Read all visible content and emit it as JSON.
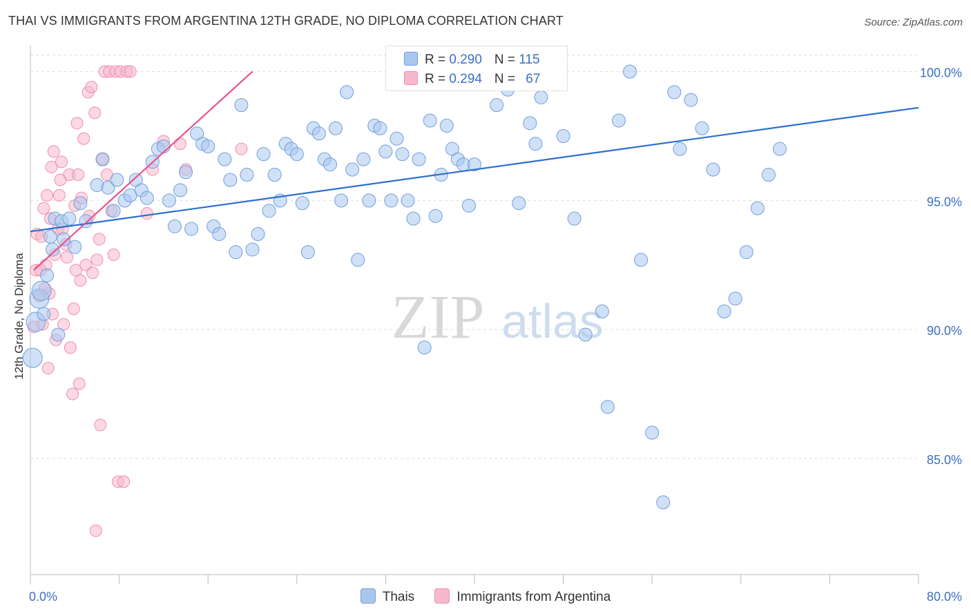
{
  "title": "THAI VS IMMIGRANTS FROM ARGENTINA 12TH GRADE, NO DIPLOMA CORRELATION CHART",
  "source": "Source: ZipAtlas.com",
  "watermark": {
    "zip": "ZIP",
    "atlas": "atlas"
  },
  "legend_top": {
    "rows": [
      {
        "r_label": "R = ",
        "r_value": "0.290",
        "n_label": "N = ",
        "n_value": "115",
        "color": "#a9c6ee"
      },
      {
        "r_label": "R = ",
        "r_value": "0.294",
        "n_label": "N = ",
        "n_value": "67",
        "color": "#f7b8cc"
      }
    ]
  },
  "chart_data": {
    "type": "scatter",
    "title": "THAI VS IMMIGRANTS FROM ARGENTINA 12TH GRADE, NO DIPLOMA CORRELATION CHART",
    "xlabel": "",
    "ylabel": "12th Grade, No Diploma",
    "xlim": [
      0,
      80
    ],
    "ylim": [
      80.5,
      100.9
    ],
    "x_tick_labels": [
      {
        "value": 0,
        "label": "0.0%"
      },
      {
        "value": 80,
        "label": "80.0%"
      }
    ],
    "y_tick_labels": [
      {
        "value": 85,
        "label": "85.0%"
      },
      {
        "value": 90,
        "label": "90.0%"
      },
      {
        "value": 95,
        "label": "95.0%"
      },
      {
        "value": 100,
        "label": "100.0%"
      }
    ],
    "grid": true,
    "legend_position": "bottom",
    "series": [
      {
        "name": "Thais",
        "color": "#a9c6ee",
        "stroke": "#6f9fdc",
        "trend": {
          "x": [
            0,
            80
          ],
          "y": [
            93.8,
            98.6
          ],
          "color": "#2a6fcf"
        },
        "points": [
          [
            0.2,
            88.9
          ],
          [
            0.5,
            90.3
          ],
          [
            0.8,
            91.2
          ],
          [
            1.0,
            91.5
          ],
          [
            1.2,
            90.6
          ],
          [
            1.5,
            92.1
          ],
          [
            1.8,
            93.6
          ],
          [
            2.0,
            93.1
          ],
          [
            2.2,
            94.3
          ],
          [
            2.5,
            89.8
          ],
          [
            2.8,
            94.2
          ],
          [
            3.0,
            93.5
          ],
          [
            3.5,
            94.3
          ],
          [
            4.0,
            93.2
          ],
          [
            4.5,
            94.9
          ],
          [
            5.0,
            94.2
          ],
          [
            6.0,
            95.6
          ],
          [
            6.5,
            96.6
          ],
          [
            7.0,
            95.5
          ],
          [
            7.5,
            94.6
          ],
          [
            7.8,
            95.8
          ],
          [
            8.5,
            95.0
          ],
          [
            9.0,
            95.2
          ],
          [
            9.5,
            95.8
          ],
          [
            10.0,
            95.4
          ],
          [
            10.5,
            95.1
          ],
          [
            11.0,
            96.5
          ],
          [
            11.5,
            97.0
          ],
          [
            12.0,
            97.1
          ],
          [
            12.5,
            95.0
          ],
          [
            13.0,
            94.0
          ],
          [
            13.5,
            95.4
          ],
          [
            14.0,
            96.1
          ],
          [
            14.5,
            93.9
          ],
          [
            15.0,
            97.6
          ],
          [
            15.5,
            97.2
          ],
          [
            16.0,
            97.1
          ],
          [
            16.5,
            94.0
          ],
          [
            17.0,
            93.7
          ],
          [
            17.5,
            96.6
          ],
          [
            18.0,
            95.8
          ],
          [
            18.5,
            93.0
          ],
          [
            19.0,
            98.7
          ],
          [
            19.5,
            96.0
          ],
          [
            20.0,
            93.1
          ],
          [
            20.5,
            93.7
          ],
          [
            21.0,
            96.8
          ],
          [
            21.5,
            94.6
          ],
          [
            22.0,
            96.0
          ],
          [
            22.5,
            95.0
          ],
          [
            23.0,
            97.2
          ],
          [
            23.5,
            97.0
          ],
          [
            24.0,
            96.8
          ],
          [
            24.5,
            94.9
          ],
          [
            25.0,
            93.0
          ],
          [
            25.5,
            97.8
          ],
          [
            26.0,
            97.6
          ],
          [
            26.5,
            96.6
          ],
          [
            27.0,
            96.4
          ],
          [
            27.5,
            97.8
          ],
          [
            28.0,
            95.0
          ],
          [
            28.5,
            99.2
          ],
          [
            29.0,
            96.2
          ],
          [
            29.5,
            92.7
          ],
          [
            30.0,
            96.6
          ],
          [
            30.5,
            95.0
          ],
          [
            31.0,
            97.9
          ],
          [
            31.5,
            97.8
          ],
          [
            32.0,
            96.9
          ],
          [
            32.5,
            95.0
          ],
          [
            33.0,
            97.4
          ],
          [
            33.5,
            96.8
          ],
          [
            34.0,
            95.0
          ],
          [
            34.5,
            94.3
          ],
          [
            35.0,
            96.6
          ],
          [
            35.5,
            89.3
          ],
          [
            36.0,
            98.1
          ],
          [
            36.5,
            94.4
          ],
          [
            37.0,
            96.0
          ],
          [
            37.5,
            97.9
          ],
          [
            38.0,
            97.0
          ],
          [
            38.5,
            96.6
          ],
          [
            39.0,
            96.4
          ],
          [
            39.5,
            94.8
          ],
          [
            40.0,
            96.4
          ],
          [
            40.5,
            100.0
          ],
          [
            41.5,
            100.0
          ],
          [
            42.0,
            98.7
          ],
          [
            43.0,
            99.3
          ],
          [
            44.0,
            94.9
          ],
          [
            45.0,
            98.0
          ],
          [
            45.5,
            97.2
          ],
          [
            46.0,
            99.0
          ],
          [
            47.0,
            100.0
          ],
          [
            48.0,
            97.5
          ],
          [
            49.0,
            94.3
          ],
          [
            50.0,
            89.8
          ],
          [
            51.5,
            90.7
          ],
          [
            52.0,
            87.0
          ],
          [
            53.0,
            98.1
          ],
          [
            54.0,
            100.0
          ],
          [
            55.0,
            92.7
          ],
          [
            56.0,
            86.0
          ],
          [
            57.0,
            83.3
          ],
          [
            58.0,
            99.2
          ],
          [
            58.5,
            97.0
          ],
          [
            59.5,
            98.9
          ],
          [
            60.5,
            97.8
          ],
          [
            61.5,
            96.2
          ],
          [
            62.5,
            90.7
          ],
          [
            63.5,
            91.2
          ],
          [
            64.5,
            93.0
          ],
          [
            65.5,
            94.7
          ],
          [
            66.5,
            96.0
          ],
          [
            67.5,
            97.0
          ]
        ]
      },
      {
        "name": "Immigrants from Argentina",
        "color": "#f7b8cc",
        "stroke": "#ee8fad",
        "trend": {
          "x": [
            0.3,
            20
          ],
          "y": [
            92.3,
            100.0
          ],
          "color": "#e8528a"
        },
        "points": [
          [
            0.3,
            90.1
          ],
          [
            0.5,
            92.3
          ],
          [
            0.6,
            93.7
          ],
          [
            0.8,
            91.3
          ],
          [
            1.0,
            93.6
          ],
          [
            1.1,
            90.2
          ],
          [
            1.2,
            94.7
          ],
          [
            1.4,
            92.5
          ],
          [
            1.5,
            95.2
          ],
          [
            1.7,
            91.4
          ],
          [
            1.9,
            96.3
          ],
          [
            2.0,
            90.6
          ],
          [
            2.2,
            92.9
          ],
          [
            2.3,
            89.6
          ],
          [
            2.5,
            93.9
          ],
          [
            2.6,
            95.2
          ],
          [
            2.8,
            96.5
          ],
          [
            3.0,
            90.2
          ],
          [
            3.2,
            93.3
          ],
          [
            3.3,
            92.8
          ],
          [
            3.5,
            96.0
          ],
          [
            3.6,
            89.3
          ],
          [
            3.8,
            87.5
          ],
          [
            4.0,
            94.8
          ],
          [
            4.2,
            98.0
          ],
          [
            4.3,
            96.0
          ],
          [
            4.5,
            91.9
          ],
          [
            4.6,
            95.1
          ],
          [
            4.8,
            97.4
          ],
          [
            5.0,
            92.5
          ],
          [
            5.2,
            99.2
          ],
          [
            5.3,
            94.4
          ],
          [
            5.5,
            99.4
          ],
          [
            5.6,
            92.2
          ],
          [
            5.8,
            98.4
          ],
          [
            6.0,
            92.7
          ],
          [
            6.2,
            93.5
          ],
          [
            6.3,
            86.3
          ],
          [
            6.5,
            96.6
          ],
          [
            6.7,
            100.0
          ],
          [
            6.9,
            96.0
          ],
          [
            7.1,
            100.0
          ],
          [
            7.3,
            94.6
          ],
          [
            7.5,
            92.9
          ],
          [
            7.7,
            100.0
          ],
          [
            7.9,
            84.1
          ],
          [
            8.1,
            100.0
          ],
          [
            8.4,
            84.1
          ],
          [
            8.7,
            100.0
          ],
          [
            9.0,
            100.0
          ],
          [
            2.7,
            95.8
          ],
          [
            3.9,
            90.8
          ],
          [
            4.4,
            87.9
          ],
          [
            5.9,
            82.2
          ],
          [
            1.3,
            91.6
          ],
          [
            1.6,
            88.5
          ],
          [
            2.1,
            96.9
          ],
          [
            2.9,
            93.9
          ],
          [
            0.9,
            92.3
          ],
          [
            1.8,
            94.3
          ],
          [
            13.5,
            97.2
          ],
          [
            14.0,
            96.2
          ],
          [
            12.0,
            97.3
          ],
          [
            11.0,
            96.2
          ],
          [
            10.5,
            94.5
          ],
          [
            19.0,
            97.0
          ],
          [
            4.1,
            92.3
          ]
        ]
      }
    ]
  },
  "legend_bottom": [
    {
      "label": "Thais",
      "color": "#a9c6ee"
    },
    {
      "label": "Immigrants from Argentina",
      "color": "#f7b8cc"
    }
  ]
}
